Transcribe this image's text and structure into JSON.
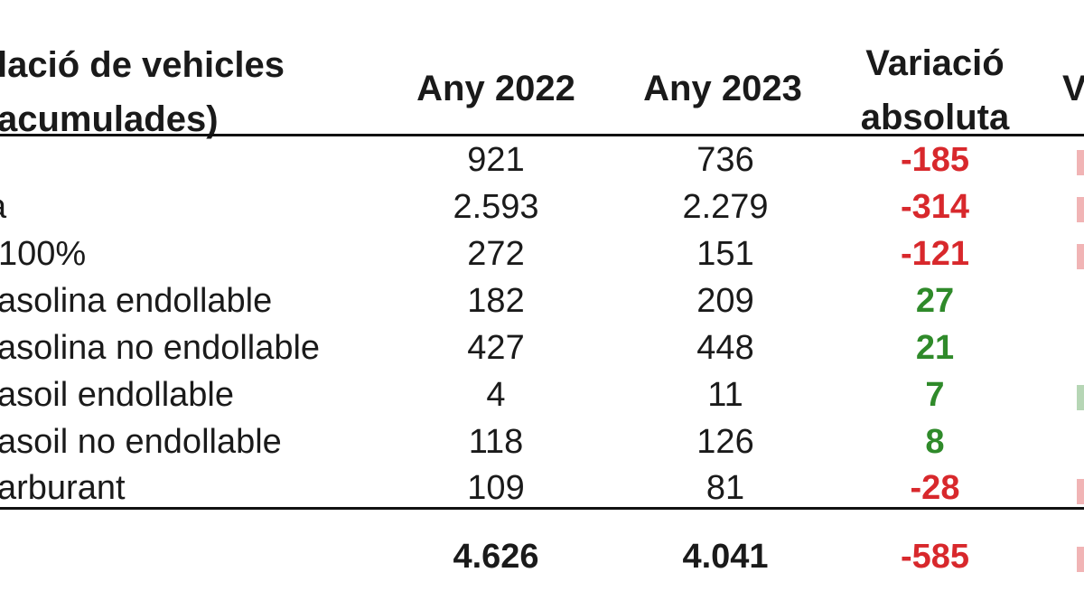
{
  "header": {
    "col_label_line1": "lació de vehicles",
    "col_label_line2": "acumulades)",
    "col_2022": "Any 2022",
    "col_2023": "Any 2023",
    "col_var_line1": "Variació",
    "col_var_line2": "absoluta",
    "col_cut": "V"
  },
  "rows": [
    {
      "label": "",
      "y2022": "921",
      "y2023": "736",
      "var": "-185"
    },
    {
      "label": "a",
      "y2022": "2.593",
      "y2023": "2.279",
      "var": "-314"
    },
    {
      "label": "100%",
      "y2022": "272",
      "y2023": "151",
      "var": "-121"
    },
    {
      "label": "asolina endollable",
      "y2022": "182",
      "y2023": "209",
      "var": "27"
    },
    {
      "label": "asolina no endollable",
      "y2022": "427",
      "y2023": "448",
      "var": "21"
    },
    {
      "label": "asoil endollable",
      "y2022": "4",
      "y2023": "11",
      "var": "7"
    },
    {
      "label": "asoil no endollable",
      "y2022": "118",
      "y2023": "126",
      "var": "8"
    },
    {
      "label": "arburant",
      "y2022": "109",
      "y2023": "81",
      "var": "-28"
    }
  ],
  "total": {
    "y2022": "4.626",
    "y2023": "4.041",
    "var": "-585"
  },
  "colors": {
    "negative": "#d8282c",
    "positive": "#2f8a2a",
    "text": "#1a1a1a",
    "rule": "#111111"
  }
}
